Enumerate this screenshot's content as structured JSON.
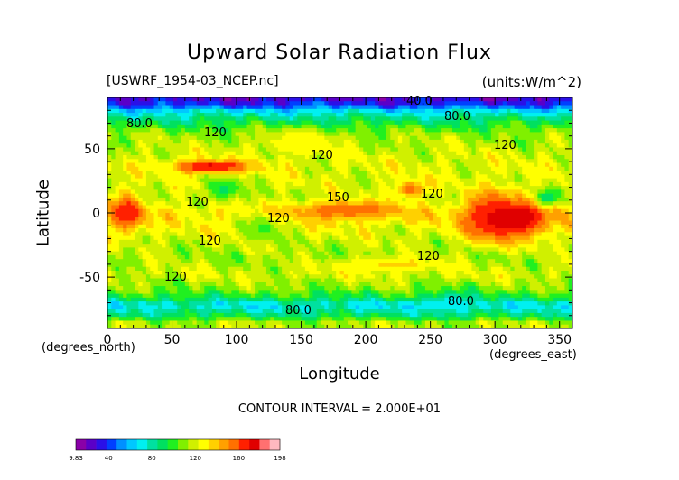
{
  "chart_data": {
    "type": "heatmap",
    "title": "Upward Solar Radiation Flux",
    "file_label": "[USWRF_1954-03_NCEP.nc]",
    "units_label": "(units:W/m^2)",
    "xlabel": "Longitude",
    "ylabel": "Latitude",
    "x_units": "(degrees_east)",
    "y_units": "(degrees_north)",
    "xlim": [
      0,
      360
    ],
    "ylim": [
      -90,
      90
    ],
    "x_ticks": [
      0,
      50,
      100,
      150,
      200,
      250,
      300,
      350
    ],
    "y_ticks": [
      -50,
      0,
      50
    ],
    "contour_interval_text": "CONTOUR INTERVAL = 2.000E+01",
    "contour_labels": [
      "40.0",
      "80.0",
      "80.0",
      "120",
      "120",
      "120",
      "150",
      "120",
      "120",
      "120",
      "120",
      "120",
      "120",
      "80.0",
      "80.0"
    ],
    "colorbar": {
      "min_label": "9.83",
      "max_label": "198",
      "tick_labels": [
        "9.83",
        "40",
        "80",
        "120",
        "160",
        "198"
      ],
      "tick_values": [
        9.83,
        40,
        80,
        120,
        160,
        198
      ],
      "colors": [
        "#8a00a8",
        "#5a00c8",
        "#2a10e8",
        "#0040ff",
        "#0090ff",
        "#00c8ff",
        "#00f0f0",
        "#00e0a0",
        "#00e060",
        "#20f020",
        "#80f000",
        "#d0f000",
        "#ffff00",
        "#ffd000",
        "#ffa000",
        "#ff7000",
        "#ff2000",
        "#e00000",
        "#ff7070",
        "#ffb8c0"
      ]
    },
    "zonal_profile": [
      {
        "lat": 90,
        "value": 25
      },
      {
        "lat": 84,
        "value": 40
      },
      {
        "lat": 79,
        "value": 70
      },
      {
        "lat": 72,
        "value": 90
      },
      {
        "lat": 62,
        "value": 110
      },
      {
        "lat": 50,
        "value": 118
      },
      {
        "lat": 38,
        "value": 122
      },
      {
        "lat": 25,
        "value": 120
      },
      {
        "lat": 12,
        "value": 118
      },
      {
        "lat": 0,
        "value": 130
      },
      {
        "lat": -10,
        "value": 125
      },
      {
        "lat": -22,
        "value": 118
      },
      {
        "lat": -35,
        "value": 112
      },
      {
        "lat": -48,
        "value": 120
      },
      {
        "lat": -58,
        "value": 110
      },
      {
        "lat": -66,
        "value": 95
      },
      {
        "lat": -72,
        "value": 70
      },
      {
        "lat": -80,
        "value": 90
      },
      {
        "lat": -86,
        "value": 115
      },
      {
        "lat": -90,
        "value": 115
      }
    ],
    "features": [
      {
        "lon": 15,
        "lat": 0,
        "rx": 14,
        "ry": 14,
        "value": 170
      },
      {
        "lon": 312,
        "lat": -5,
        "rx": 30,
        "ry": 14,
        "value": 185
      },
      {
        "lon": 300,
        "lat": -2,
        "rx": 22,
        "ry": 18,
        "value": 170
      },
      {
        "lon": 80,
        "lat": 36,
        "rx": 30,
        "ry": 5,
        "value": 175
      },
      {
        "lon": 185,
        "lat": 2,
        "rx": 40,
        "ry": 7,
        "value": 160
      },
      {
        "lon": 235,
        "lat": 18,
        "rx": 12,
        "ry": 7,
        "value": 155
      },
      {
        "lon": 150,
        "lat": 55,
        "rx": 30,
        "ry": 10,
        "value": 130
      },
      {
        "lon": 90,
        "lat": 18,
        "rx": 12,
        "ry": 8,
        "value": 90
      },
      {
        "lon": 120,
        "lat": -12,
        "rx": 12,
        "ry": 10,
        "value": 100
      },
      {
        "lon": 265,
        "lat": -70,
        "rx": 15,
        "ry": 8,
        "value": 70
      },
      {
        "lon": 340,
        "lat": 12,
        "rx": 8,
        "ry": 6,
        "value": 85
      },
      {
        "lon": 220,
        "lat": -40,
        "rx": 40,
        "ry": 6,
        "value": 135
      }
    ]
  }
}
